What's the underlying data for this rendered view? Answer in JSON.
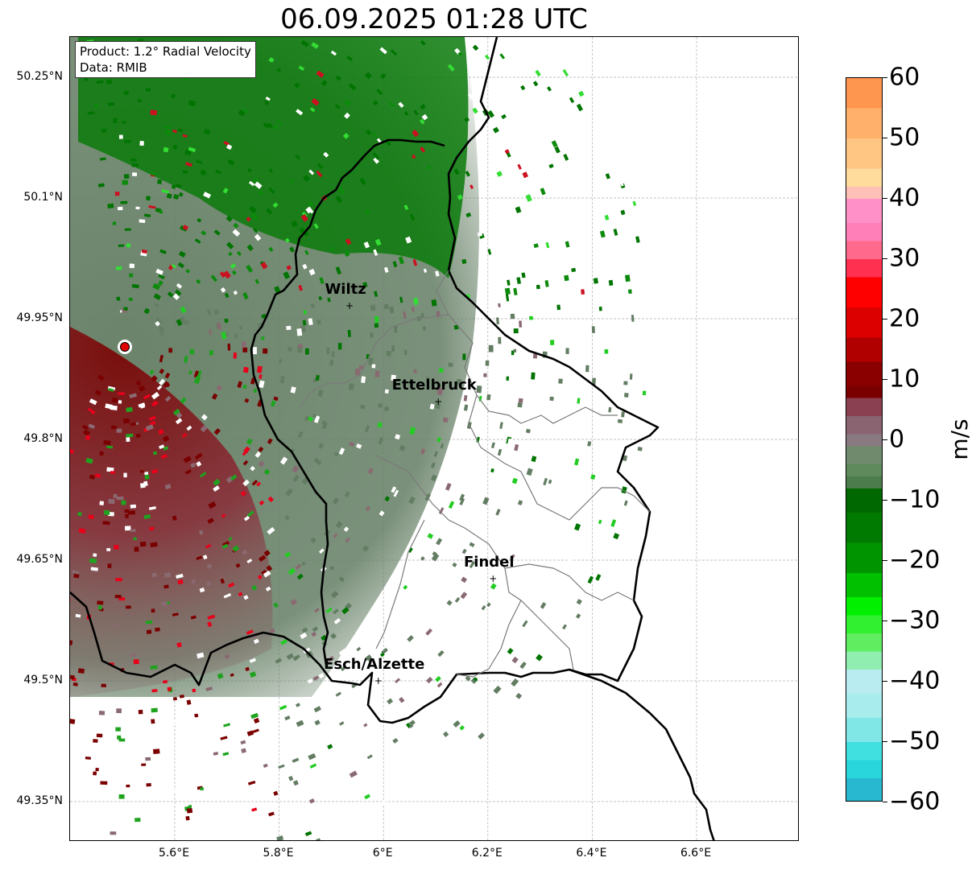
{
  "title": "06.09.2025 01:28 UTC",
  "info_box": {
    "product": "Product: 1.2° Radial Velocity",
    "data": "Data: RMIB"
  },
  "map": {
    "lat_ticks": [
      "50.25°N",
      "50.1°N",
      "49.95°N",
      "49.8°N",
      "49.65°N",
      "49.5°N",
      "49.35°N"
    ],
    "lon_ticks": [
      "5.6°E",
      "5.8°E",
      "6°E",
      "6.2°E",
      "6.4°E",
      "6.6°E"
    ],
    "lat_values": [
      50.25,
      50.1,
      49.95,
      49.8,
      49.65,
      49.5,
      49.35
    ],
    "lon_values": [
      5.6,
      5.8,
      6.0,
      6.2,
      6.4,
      6.6
    ],
    "grid": true,
    "radar_site": {
      "lon": 5.505,
      "lat": 49.914
    },
    "cities": [
      {
        "name": "Wiltz",
        "lon": 5.935,
        "lat": 49.966
      },
      {
        "name": "Ettelbruck",
        "lon": 6.105,
        "lat": 49.847
      },
      {
        "name": "Findel",
        "lon": 6.21,
        "lat": 49.627
      },
      {
        "name": "Esch/Alzette",
        "lon": 5.99,
        "lat": 49.5
      }
    ]
  },
  "colorbar": {
    "unit": "m/s",
    "ticks": [
      "60",
      "50",
      "40",
      "30",
      "20",
      "10",
      "0",
      "−10",
      "−20",
      "−30",
      "−40",
      "−50",
      "−60"
    ],
    "min": -60,
    "max": 60
  },
  "colors": {
    "outbound_dark": "#7a0000",
    "outbound_red": "#e8001a",
    "near_zero": "#857a80",
    "inbound_grey_green": "#637d63",
    "inbound_green": "#007400",
    "inbound_bright": "#22dd22"
  }
}
